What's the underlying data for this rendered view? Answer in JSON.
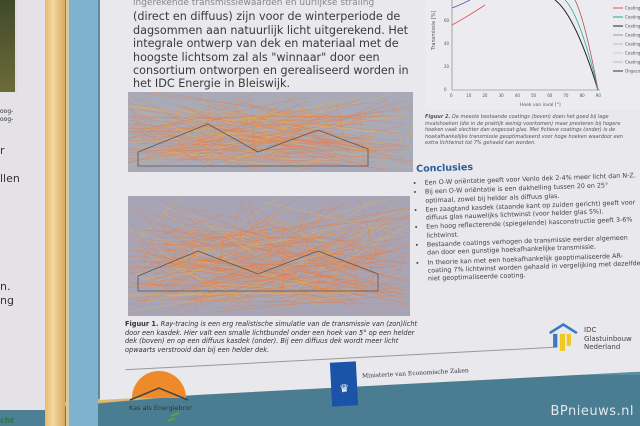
{
  "left_poster": {
    "fragments": [
      "oog-",
      "oog-",
      "r",
      "llen",
      "n.",
      "ng"
    ],
    "bottom_fragment": "cht"
  },
  "intro_text": "(direct en diffuus) zijn voor de winterperiode de dagsommen aan natuurlijk licht uitgerekend. Het integrale ontwerp van dek en materiaal met de hoogste lichtsom zal als \"winnaar\" door een consortium ontworpen en gerealiseerd worden in het IDC Energie in Bleiswijk.",
  "intro_partial_top": "ingerekende transmissiewaarden en uurlijkse straling",
  "figure1": {
    "label": "Figuur 1.",
    "caption": "Ray-tracing is een erg realistische simulatie van de transmissie van (zon)licht door een kasdek. Hier valt een smalle lichtbundel onder een hoek van 5° op een helder dek (boven) en op een diffuus kasdek (onder). Bij een diffuus dek wordt meer licht opwaarts verstrooid dan bij een helder dek.",
    "colors": {
      "background": "#a8aab8",
      "rays": "#f07a3a",
      "highlight": "#f2b73a"
    }
  },
  "figure2": {
    "label": "Figuur 2.",
    "caption": "De meeste bestaande coatings (boven) doen het goed bij lage invalshoeken (die in de praktijk weinig voorkomen) maar presteren bij hogere hoeken vaak slechter dan ongecoat glas. Met fictieve coatings (onder) is de hoekafhankelijke transmissie geoptimaliseerd voor hoge hoeken waardoor een extra lichtwinst tot 7% gehaald kan worden.",
    "chart_data": {
      "type": "line",
      "xlabel": "Hoek van inval [°]",
      "ylabel": "Transmissie [%]",
      "x_ticks": [
        "0",
        "10",
        "20",
        "30",
        "40",
        "50",
        "60",
        "70",
        "80",
        "90"
      ],
      "y_ticks": [
        "0",
        "20",
        "40",
        "60"
      ],
      "legend": [
        "Coating",
        "Coating",
        "Coating",
        "Coating",
        "Coating",
        "Coating",
        "Coating",
        "Ongecoat"
      ],
      "legend_placement": "right"
    }
  },
  "conclusions": {
    "title": "Conclusies",
    "items": [
      "Een O-W oriëntatie geeft voor Venlo dek 2-4% meer licht dan N-Z.",
      "Bij een O-W oriëntatie is een dakhelling tussen 20 en 25° optimaal, zowel bij helder als diffuus glas.",
      "Een zaagtand kasdek (staande kant op zuiden gericht) geeft voor diffuus glas nauwelijks lichtwinst (voor helder glas 5%).",
      "Een hoog reflecterende (spiegelende) kasconstructie geeft 3-6% lichtwinst.",
      "Bestaande coatings verhogen de transmissie eerder algemeen dan door een gunstige hoekafhankelijke transmissie.",
      "In theorie kan met een hoekafhankelijk geoptimaliseerde AR-coating 7% lichtwinst worden gehaald in vergelijking met dezelfde niet geoptimaliseerde coating."
    ]
  },
  "logos": {
    "kas": "Kas als Energiebron",
    "ministry": "Ministerie van Economische Zaken",
    "idc": "IDC Glastuinbouw Nederland"
  },
  "watermark": "BPnieuws.nl"
}
